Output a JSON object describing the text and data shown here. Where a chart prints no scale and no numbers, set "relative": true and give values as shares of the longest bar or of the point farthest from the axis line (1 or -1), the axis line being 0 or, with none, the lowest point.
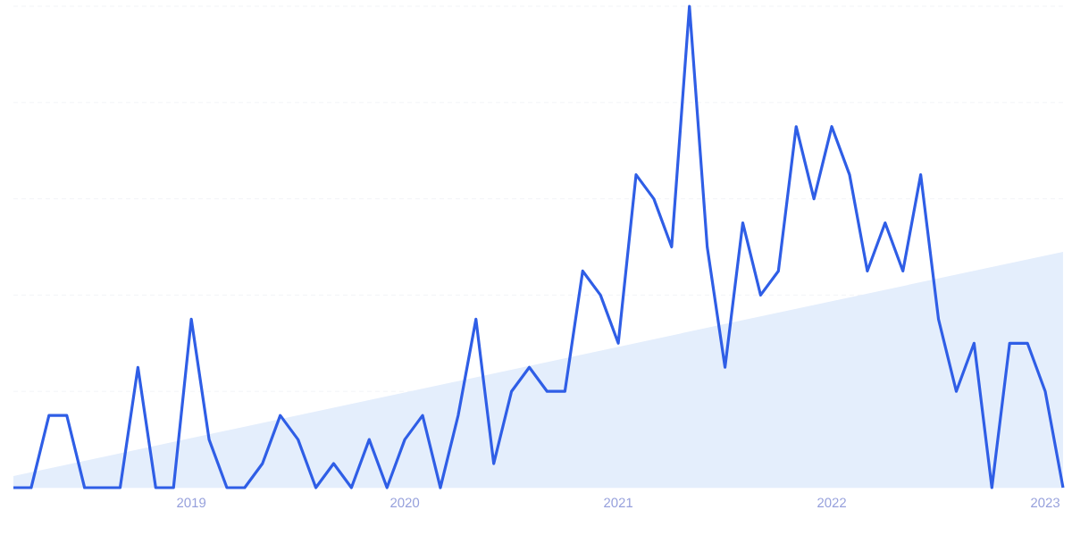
{
  "chart_data": {
    "type": "line",
    "relative": true,
    "grid": "y",
    "x": [
      "2018-03",
      "2018-04",
      "2018-05",
      "2018-06",
      "2018-07",
      "2018-08",
      "2018-09",
      "2018-10",
      "2018-11",
      "2018-12",
      "2019-01",
      "2019-02",
      "2019-03",
      "2019-04",
      "2019-05",
      "2019-06",
      "2019-07",
      "2019-08",
      "2019-09",
      "2019-10",
      "2019-11",
      "2019-12",
      "2020-01",
      "2020-02",
      "2020-03",
      "2020-04",
      "2020-05",
      "2020-06",
      "2020-07",
      "2020-08",
      "2020-09",
      "2020-10",
      "2020-11",
      "2020-12",
      "2021-01",
      "2021-02",
      "2021-03",
      "2021-04",
      "2021-05",
      "2021-06",
      "2021-07",
      "2021-08",
      "2021-09",
      "2021-10",
      "2021-11",
      "2021-12",
      "2022-01",
      "2022-02",
      "2022-03",
      "2022-04",
      "2022-05",
      "2022-06",
      "2022-07",
      "2022-08",
      "2022-09",
      "2022-10",
      "2022-11",
      "2022-12",
      "2023-01",
      "2023-02"
    ],
    "xlim": [
      "2018-03",
      "2023-02"
    ],
    "xticks": [
      "2019",
      "2020",
      "2021",
      "2022",
      "2023"
    ],
    "series": [
      {
        "type": "area",
        "color": "#e4eefc",
        "x": [
          "2018-03",
          "2023-02"
        ],
        "values": [
          0.024,
          0.49
        ]
      },
      {
        "color": "#2f5ee6",
        "values": [
          0,
          0,
          0.15,
          0.15,
          0,
          0,
          0,
          0.25,
          0,
          0,
          0.35,
          0.1,
          0,
          0,
          0.05,
          0.15,
          0.1,
          0,
          0.05,
          0,
          0.1,
          0,
          0.1,
          0.15,
          0,
          0.15,
          0.35,
          0.05,
          0.2,
          0.25,
          0.2,
          0.2,
          0.45,
          0.4,
          0.3,
          0.65,
          0.6,
          0.5,
          1,
          0.5,
          0.25,
          0.55,
          0.4,
          0.45,
          0.75,
          0.6,
          0.75,
          0.65,
          0.45,
          0.55,
          0.45,
          0.65,
          0.35,
          0.2,
          0.3,
          0,
          0.3,
          0.3,
          0.2,
          0
        ]
      }
    ]
  }
}
